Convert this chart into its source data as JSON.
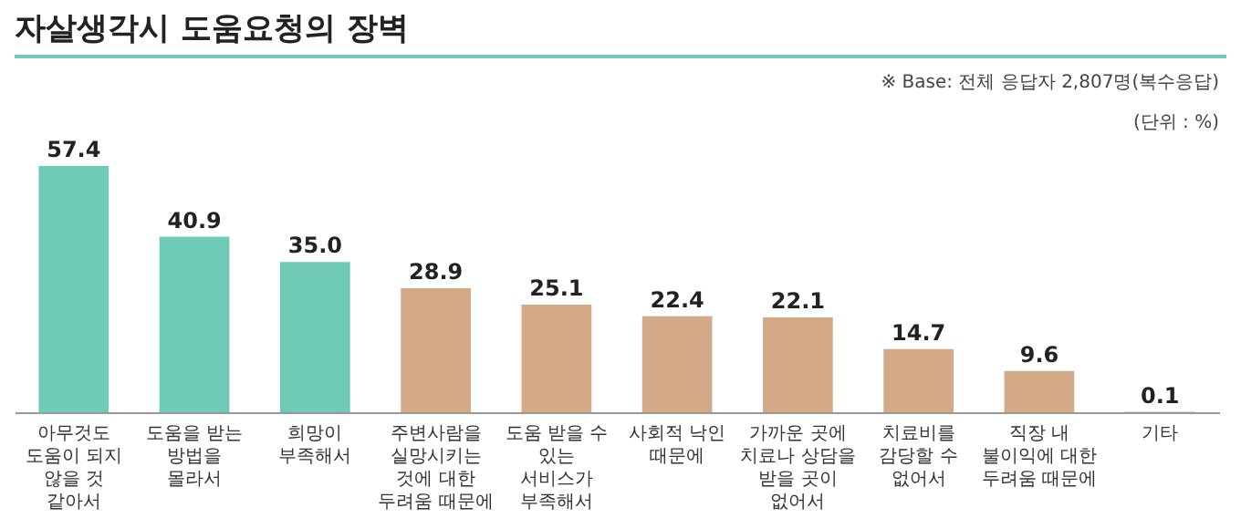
{
  "chart_data": {
    "type": "bar",
    "title": "자살생각시 도움요청의 장벽",
    "annotations": [
      "※ Base: 전체 응답자 2,807명(복수응답)",
      "(단위 : %)"
    ],
    "categories": [
      "아무것도\n도움이 되지\n않을 것\n같아서",
      "도움을 받는\n방법을\n몰라서",
      "희망이\n부족해서",
      "주변사람을\n실망시키는\n것에 대한\n두려움 때문에",
      "도움 받을 수\n있는\n서비스가\n부족해서",
      "사회적 낙인\n때문에",
      "가까운 곳에\n치료나 상담을\n받을 곳이\n없어서",
      "치료비를\n감당할 수\n없어서",
      "직장 내\n불이익에 대한\n두려움 때문에",
      "기타"
    ],
    "values": [
      57.4,
      40.9,
      35.0,
      28.9,
      25.1,
      22.4,
      22.1,
      14.7,
      9.6,
      0.1
    ],
    "colors": [
      "#6fcbb6",
      "#6fcbb6",
      "#6fcbb6",
      "#d3a988",
      "#d3a988",
      "#d3a988",
      "#d3a988",
      "#d3a988",
      "#d3a988",
      "#d3a988"
    ],
    "value_labels": [
      "57.4",
      "40.9",
      "35.0",
      "28.9",
      "25.1",
      "22.4",
      "22.1",
      "14.7",
      "9.6",
      "0.1"
    ]
  }
}
